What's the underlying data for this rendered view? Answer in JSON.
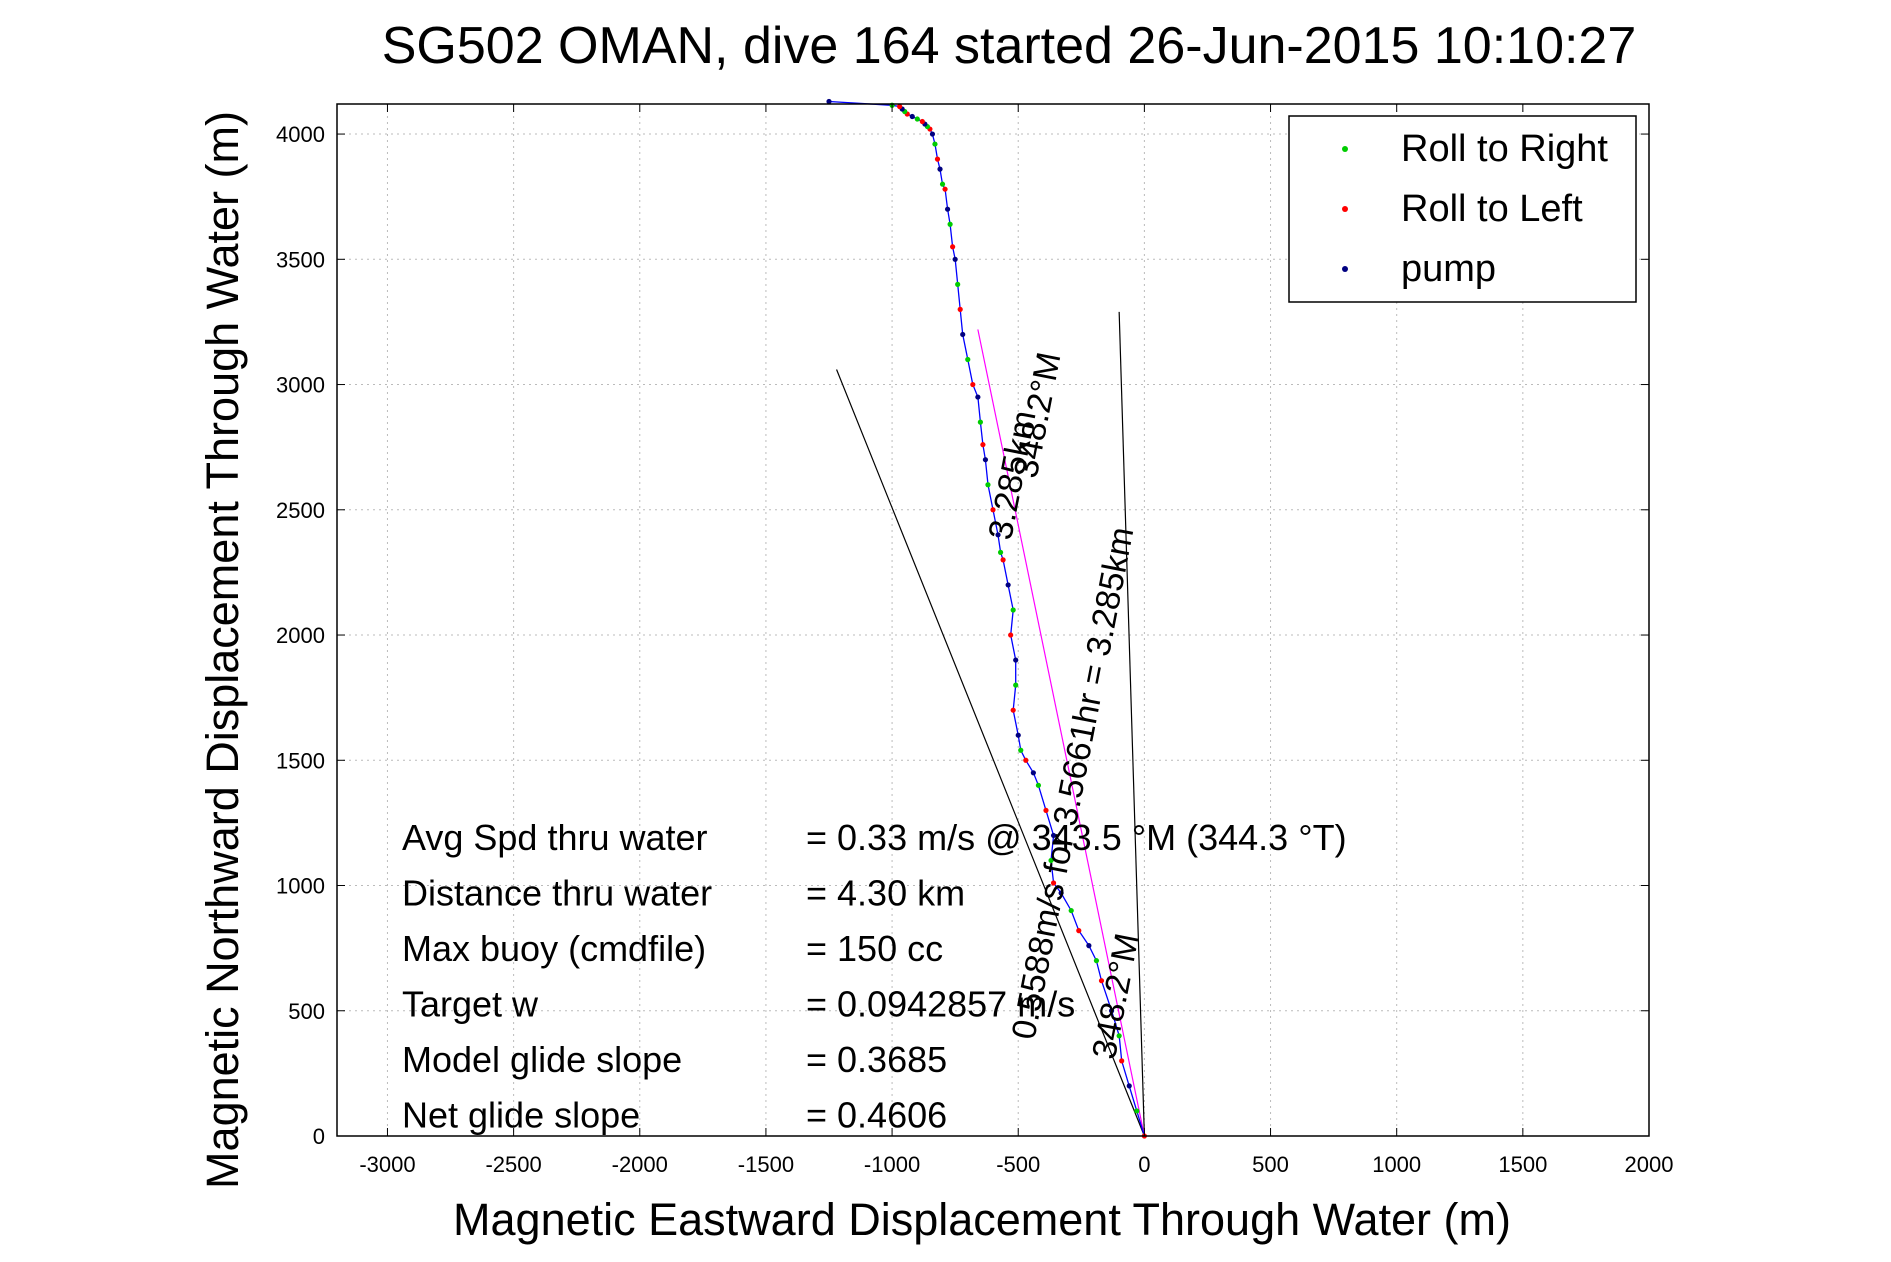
{
  "chart_data": {
    "type": "line",
    "title": "SG502 OMAN, dive 164 started 26-Jun-2015 10:10:27",
    "xlabel": "Magnetic Eastward Displacement Through Water (m)",
    "ylabel": "Magnetic Northward Displacement Through Water (m)",
    "xlim": [
      -3200,
      2000
    ],
    "ylim": [
      0,
      4120
    ],
    "x_ticks": [
      -3000,
      -2500,
      -2000,
      -1500,
      -1000,
      -500,
      0,
      500,
      1000,
      1500,
      2000
    ],
    "y_ticks": [
      0,
      500,
      1000,
      1500,
      2000,
      2500,
      3000,
      3500,
      4000
    ],
    "grid": true,
    "legend_position": "top-right",
    "legend": [
      {
        "label": "Roll to Right",
        "color": "#00cc00"
      },
      {
        "label": "Roll to Left",
        "color": "#ff0000"
      },
      {
        "label": "pump",
        "color": "#000080"
      }
    ],
    "series": [
      {
        "color": "#0000ff",
        "x": [
          0,
          -30,
          -60,
          -90,
          -100,
          -130,
          -170,
          -190,
          -220,
          -260,
          -290,
          -330,
          -360,
          -370,
          -360,
          -390,
          -420,
          -440,
          -470,
          -490,
          -500,
          -520,
          -510,
          -510,
          -530,
          -520,
          -540,
          -560,
          -570,
          -580,
          -600,
          -620,
          -630,
          -640,
          -650,
          -660,
          -680,
          -700,
          -720,
          -730,
          -740,
          -750,
          -760,
          -770,
          -780,
          -790,
          -800,
          -810,
          -820,
          -830,
          -840,
          -850,
          -860,
          -870,
          -880,
          -900,
          -920,
          -940,
          -950,
          -960,
          -970,
          -1000,
          -1250
        ],
        "y": [
          0,
          100,
          200,
          300,
          400,
          500,
          620,
          700,
          760,
          820,
          900,
          970,
          1010,
          1100,
          1200,
          1300,
          1400,
          1450,
          1500,
          1540,
          1600,
          1700,
          1800,
          1900,
          2000,
          2100,
          2200,
          2300,
          2330,
          2400,
          2500,
          2600,
          2700,
          2760,
          2850,
          2950,
          3000,
          3100,
          3200,
          3300,
          3400,
          3500,
          3550,
          3640,
          3700,
          3780,
          3800,
          3860,
          3900,
          3960,
          4000,
          4020,
          4030,
          4040,
          4050,
          4060,
          4070,
          4080,
          4090,
          4100,
          4110,
          4115,
          4130
        ]
      }
    ],
    "guide_lines": [
      {
        "color": "#000000",
        "x": [
          0,
          -1220
        ],
        "y": [
          0,
          3060
        ]
      },
      {
        "color": "#000000",
        "x": [
          0,
          -100
        ],
        "y": [
          0,
          3290
        ]
      },
      {
        "color": "#ff00ff",
        "x": [
          0,
          -660
        ],
        "y": [
          0,
          3220
        ]
      }
    ],
    "line_labels": [
      {
        "text": "3.285km",
        "x": -480,
        "y": 2630,
        "angle": -79
      },
      {
        "text": "348.2°M",
        "x": -380,
        "y": 2870,
        "angle": -79
      },
      {
        "text": "0.5588m/s for 3.5661hr = 3.285km",
        "x": -240,
        "y": 1400,
        "angle": -79
      },
      {
        "text": "348.2°M",
        "x": -70,
        "y": 550,
        "angle": -79
      }
    ],
    "annotations": [
      {
        "label": "Avg Spd thru water",
        "value": "=  0.33 m/s @ 343.5 °M (344.3 °T)"
      },
      {
        "label": "Distance thru water",
        "value": "=  4.30 km"
      },
      {
        "label": "Max buoy (cmdfile)",
        "value": "= 150 cc"
      },
      {
        "label": "Target w",
        "value": "= 0.0942857 m/s"
      },
      {
        "label": "Model glide slope",
        "value": "= 0.3685"
      },
      {
        "label": "Net glide slope",
        "value": "= 0.4606"
      }
    ]
  }
}
